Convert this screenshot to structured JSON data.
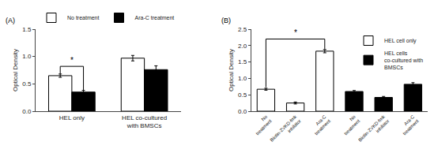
{
  "chart_data": [
    {
      "type": "bar",
      "title": "(A)",
      "categories": [
        "HEL only",
        "HEL co-cultured\nwith BMSCs"
      ],
      "series": [
        {
          "name": "No treatment",
          "color": "white",
          "values": [
            0.65,
            0.97
          ],
          "errors": [
            0.03,
            0.05
          ]
        },
        {
          "name": "Ara-C treatment",
          "color": "black",
          "values": [
            0.35,
            0.76
          ],
          "errors": [
            0.03,
            0.07
          ]
        }
      ],
      "ylabel": "Optical Density",
      "ylim": [
        0,
        1.5
      ],
      "yticks": [
        {
          "value": 0,
          "label": "0.0"
        },
        0.5,
        {
          "value": 1,
          "label": "1.0"
        },
        1.5
      ],
      "grid": false,
      "legend": "upper left",
      "annotations": [
        {
          "text": "*",
          "x": [
            0,
            0
          ],
          "y": 0.82,
          "y_ends": [
            0.68,
            0.38
          ]
        }
      ]
    },
    {
      "type": "bar",
      "title": "(B)",
      "categories": [
        "No\ntreatment",
        "Biotin-ZVKD-fmk\ninhibitor",
        "Ara-C\ntreatment",
        "No\ntreatment",
        "Biotin-ZVKD-fmk\ninhibitor",
        "Ara-C\ntreatment"
      ],
      "series": [
        {
          "name": "HEL cell only",
          "color": "white",
          "values": [
            0.67,
            0.25,
            1.83,
            null,
            null,
            null
          ],
          "errors": [
            0.03,
            0.03,
            0.05,
            null,
            null,
            null
          ]
        },
        {
          "name": "HEL cells\nco-cultured with\nBMSCs",
          "color": "black",
          "values": [
            null,
            null,
            null,
            0.6,
            0.42,
            0.82
          ],
          "errors": [
            null,
            null,
            null,
            0.03,
            0.03,
            0.05
          ]
        }
      ],
      "ylabel": "Optical Density",
      "ylim": [
        0,
        2.5
      ],
      "yticks": [
        {
          "value": 0,
          "label": "0.0"
        },
        0.5,
        {
          "value": 1,
          "label": "1.0"
        },
        1.5,
        {
          "value": 2,
          "label": "2.0"
        },
        2.5
      ],
      "grid": false,
      "legend": "upper right",
      "annotations": [
        {
          "text": "*",
          "x": [
            0,
            2
          ],
          "y": 2.2,
          "y_ends": [
            0.73,
            1.9
          ]
        }
      ]
    }
  ]
}
